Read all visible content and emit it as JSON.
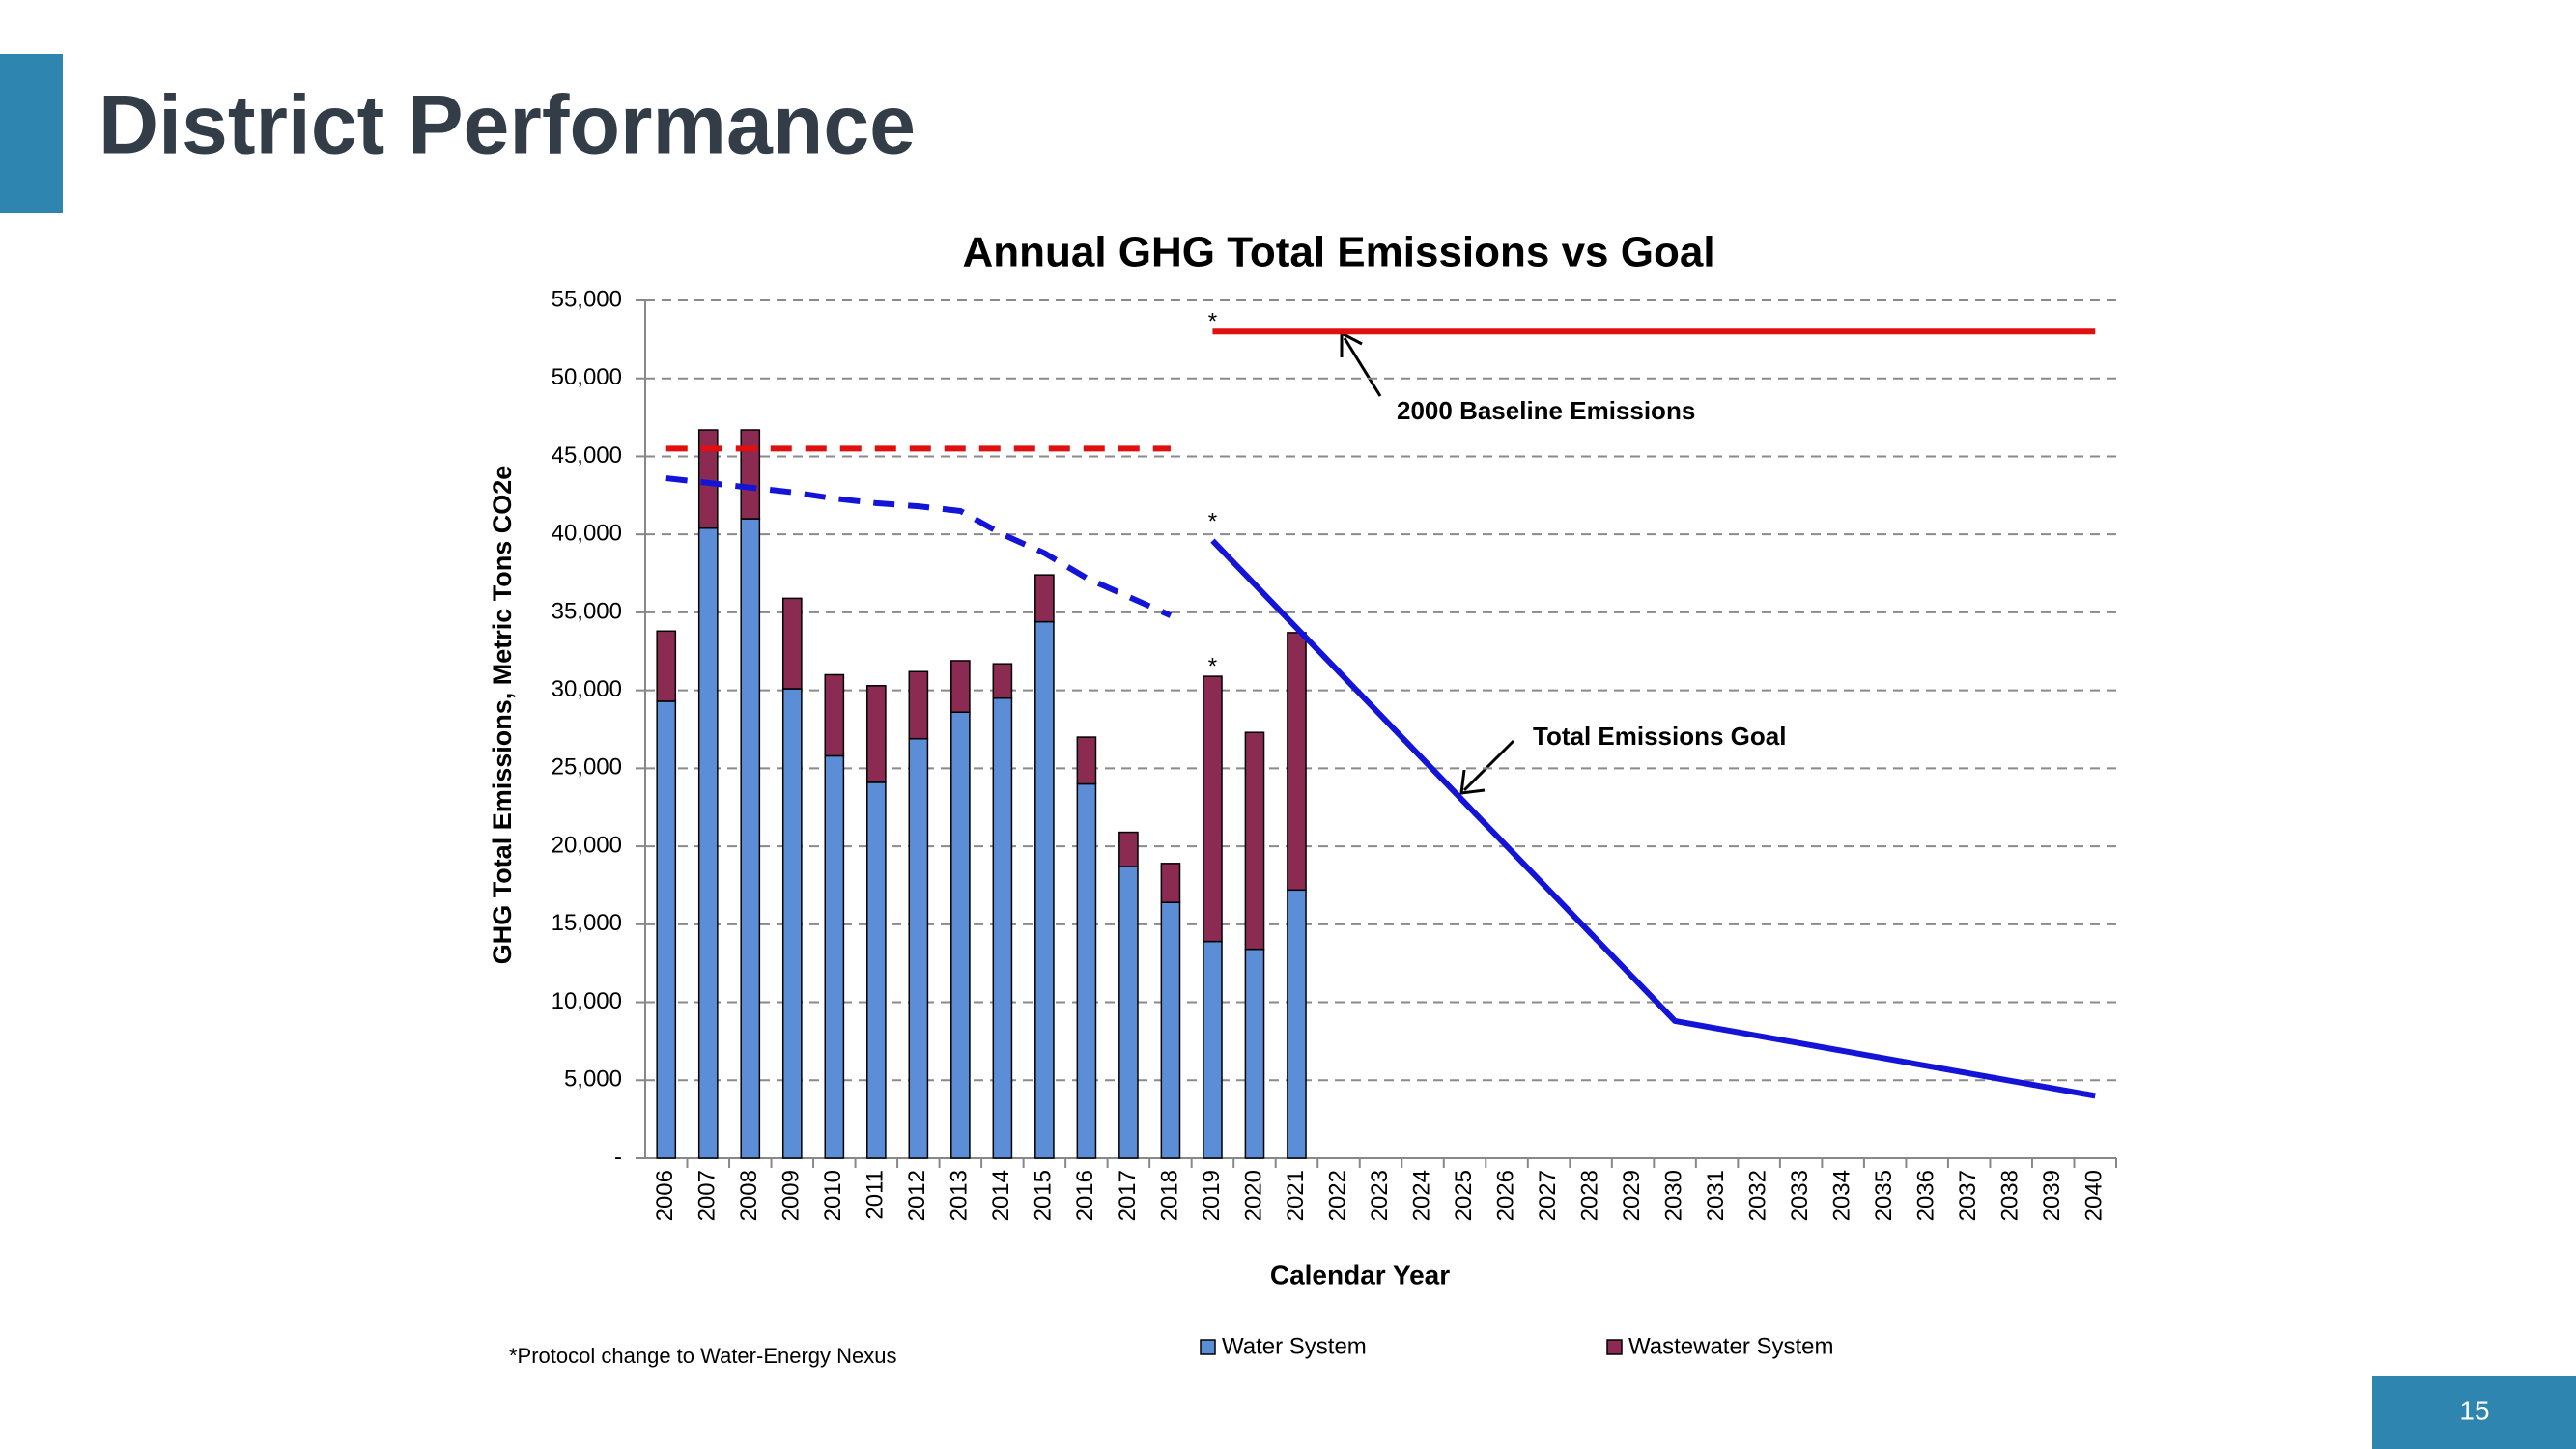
{
  "header": {
    "title": "District Performance"
  },
  "page_number": "15",
  "chart_data": {
    "type": "bar",
    "stacked": true,
    "title": "Annual GHG Total Emissions vs Goal",
    "x_label": "Calendar Year",
    "y_label": "GHG Total Emissions, Metric Tons CO2e",
    "categories": [
      "2006",
      "2007",
      "2008",
      "2009",
      "2010",
      "2011",
      "2012",
      "2013",
      "2014",
      "2015",
      "2016",
      "2017",
      "2018",
      "2019",
      "2020",
      "2021",
      "2022",
      "2023",
      "2024",
      "2025",
      "2026",
      "2027",
      "2028",
      "2029",
      "2030",
      "2031",
      "2032",
      "2033",
      "2034",
      "2035",
      "2036",
      "2037",
      "2038",
      "2039",
      "2040"
    ],
    "series": [
      {
        "name": "Water System",
        "color": "#5b8ed6",
        "values": [
          29300,
          40400,
          41000,
          30100,
          25800,
          24100,
          26900,
          28600,
          29500,
          34400,
          24000,
          18700,
          16400,
          13900,
          13400,
          17200,
          null,
          null,
          null,
          null,
          null,
          null,
          null,
          null,
          null,
          null,
          null,
          null,
          null,
          null,
          null,
          null,
          null,
          null,
          null
        ]
      },
      {
        "name": "Wastewater System",
        "color": "#8b2b52",
        "values": [
          4500,
          6300,
          5700,
          5800,
          5200,
          6200,
          4300,
          3300,
          2200,
          3000,
          3000,
          2200,
          2500,
          17000,
          13900,
          16500,
          null,
          null,
          null,
          null,
          null,
          null,
          null,
          null,
          null,
          null,
          null,
          null,
          null,
          null,
          null,
          null,
          null,
          null,
          null
        ]
      }
    ],
    "lines": [
      {
        "color": "#e01010",
        "style": "dashed",
        "values": [
          45500,
          45500,
          45500,
          45500,
          45500,
          45500,
          45500,
          45500,
          45500,
          45500,
          45500,
          45500,
          45500,
          null,
          null,
          null,
          null,
          null,
          null,
          null,
          null,
          null,
          null,
          null,
          null,
          null,
          null,
          null,
          null,
          null,
          null,
          null,
          null,
          null,
          null
        ]
      },
      {
        "color": "#e01010",
        "style": "solid",
        "values": [
          null,
          null,
          null,
          null,
          null,
          null,
          null,
          null,
          null,
          null,
          null,
          null,
          null,
          53000,
          53000,
          53000,
          53000,
          53000,
          53000,
          53000,
          53000,
          53000,
          53000,
          53000,
          53000,
          53000,
          53000,
          53000,
          53000,
          53000,
          53000,
          53000,
          53000,
          53000,
          53000
        ]
      },
      {
        "color": "#1414d8",
        "style": "dashed",
        "values": [
          43600,
          43300,
          43000,
          42700,
          42300,
          42000,
          41800,
          41500,
          40000,
          38800,
          37200,
          36000,
          34800,
          null,
          null,
          null,
          null,
          null,
          null,
          null,
          null,
          null,
          null,
          null,
          null,
          null,
          null,
          null,
          null,
          null,
          null,
          null,
          null,
          null,
          null
        ]
      },
      {
        "color": "#1414d8",
        "style": "solid",
        "values": [
          null,
          null,
          null,
          null,
          null,
          null,
          null,
          null,
          null,
          null,
          null,
          null,
          null,
          39600,
          36800,
          34000,
          31200,
          28400,
          25600,
          22800,
          20000,
          17200,
          14400,
          11600,
          8800,
          8320,
          7840,
          7360,
          6880,
          6400,
          5920,
          5440,
          4960,
          4480,
          4000
        ]
      }
    ],
    "ylim": [
      0,
      55000
    ],
    "yticks": [
      {
        "value": 0,
        "label": "-"
      },
      {
        "value": 5000,
        "label": "5,000"
      },
      {
        "value": 10000,
        "label": "10,000"
      },
      {
        "value": 15000,
        "label": "15,000"
      },
      {
        "value": 20000,
        "label": "20,000"
      },
      {
        "value": 25000,
        "label": "25,000"
      },
      {
        "value": 30000,
        "label": "30,000"
      },
      {
        "value": 35000,
        "label": "35,000"
      },
      {
        "value": 40000,
        "label": "40,000"
      },
      {
        "value": 45000,
        "label": "45,000"
      },
      {
        "value": 50000,
        "label": "50,000"
      },
      {
        "value": 55000,
        "label": "55,000"
      }
    ],
    "grid": true,
    "annotations": [
      "*",
      "*",
      "*",
      "2000 Baseline Emissions",
      "Total Emissions Goal"
    ],
    "footnote": "*Protocol change to Water-Energy Nexus"
  }
}
